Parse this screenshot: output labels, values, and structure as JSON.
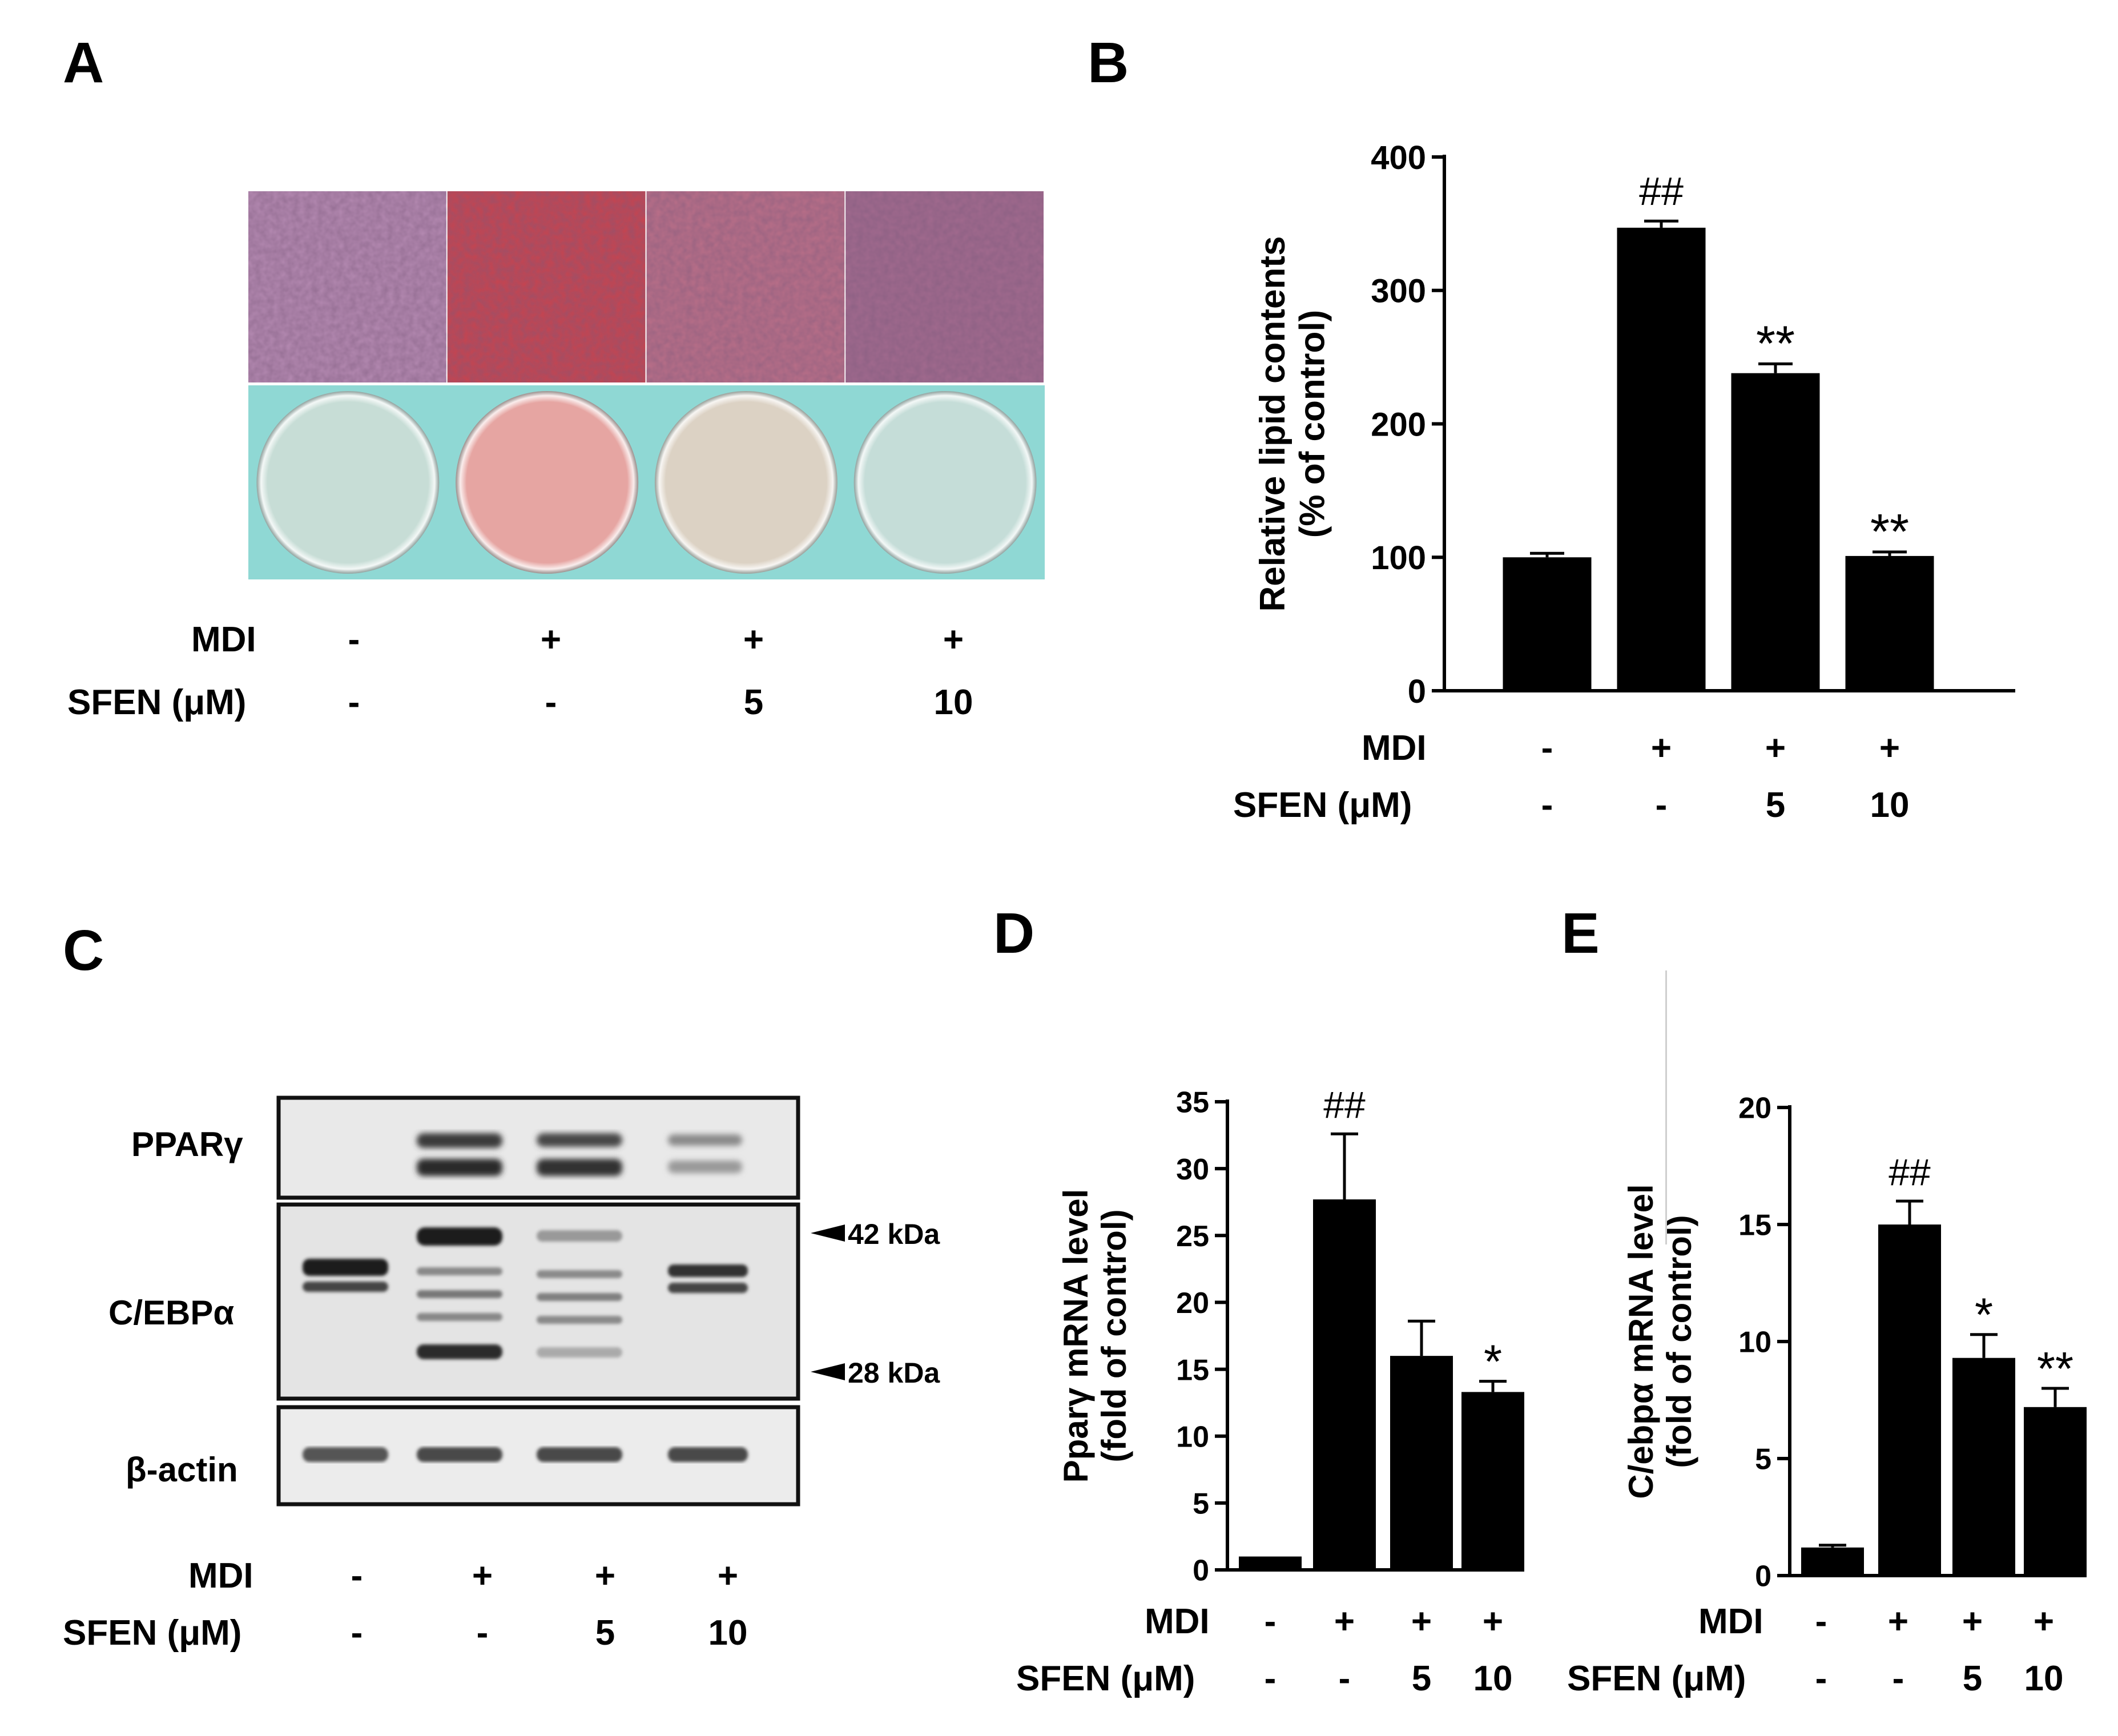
{
  "panels": {
    "a": {
      "letter": "A"
    },
    "b": {
      "letter": "B"
    },
    "c": {
      "letter": "C"
    },
    "d": {
      "letter": "D"
    },
    "e": {
      "letter": "E"
    }
  },
  "conditions": {
    "mdi_label": "MDI",
    "sfen_label": "SFEN (μM)",
    "mdi": [
      "-",
      "+",
      "+",
      "+"
    ],
    "sfen": [
      "-",
      "-",
      "5",
      "10"
    ]
  },
  "panel_a": {
    "micrograph_tints": [
      "#b58ab2",
      "#c8434e",
      "#bb6f88",
      "#a26a8e"
    ],
    "dish_tints": [
      "#c7ddd6",
      "#e6a5a2",
      "#dcd2c4",
      "#c5ddd8"
    ],
    "background_color": "#8fd8d4"
  },
  "panel_c": {
    "blots": [
      "PPARγ",
      "C/EBPα",
      "β-actin"
    ],
    "markers": [
      "42 kDa",
      "28 kDa"
    ]
  },
  "chart_data": [
    {
      "type": "bar",
      "panel": "B",
      "categories": [
        "-/-",
        "+/-",
        "+/5",
        "+/10"
      ],
      "values": [
        100,
        347,
        238,
        101
      ],
      "errors": [
        3,
        5,
        7,
        3
      ],
      "annotations": [
        "",
        "##",
        "**",
        "**"
      ],
      "ylabel_lines": [
        "Relative lipid contents",
        "(% of control)"
      ],
      "yticks": [
        0,
        100,
        200,
        300,
        400
      ],
      "ylim": [
        0,
        400
      ],
      "bar_color": "#000000"
    },
    {
      "type": "bar",
      "panel": "D",
      "categories": [
        "-/-",
        "+/-",
        "+/5",
        "+/10"
      ],
      "values": [
        1,
        27.7,
        16,
        13.3
      ],
      "errors": [
        0,
        4.9,
        2.6,
        0.8
      ],
      "annotations": [
        "",
        "##",
        "",
        "*"
      ],
      "ylabel_lines": [
        "Pparγ mRNA level",
        "(fold of control)"
      ],
      "yticks": [
        0,
        5,
        10,
        15,
        20,
        25,
        30,
        35
      ],
      "ylim": [
        0,
        35
      ],
      "bar_color": "#000000"
    },
    {
      "type": "bar",
      "panel": "E",
      "categories": [
        "-/-",
        "+/-",
        "+/5",
        "+/10"
      ],
      "values": [
        1.2,
        15,
        9.3,
        7.2
      ],
      "errors": [
        0.1,
        1.0,
        1.0,
        0.8
      ],
      "annotations": [
        "",
        "##",
        "*",
        "**"
      ],
      "ylabel_lines": [
        "C/ebpα mRNA level",
        "(fold of control)"
      ],
      "yticks": [
        0,
        5,
        10,
        15,
        20
      ],
      "ylim": [
        0,
        20
      ],
      "bar_color": "#000000"
    }
  ]
}
